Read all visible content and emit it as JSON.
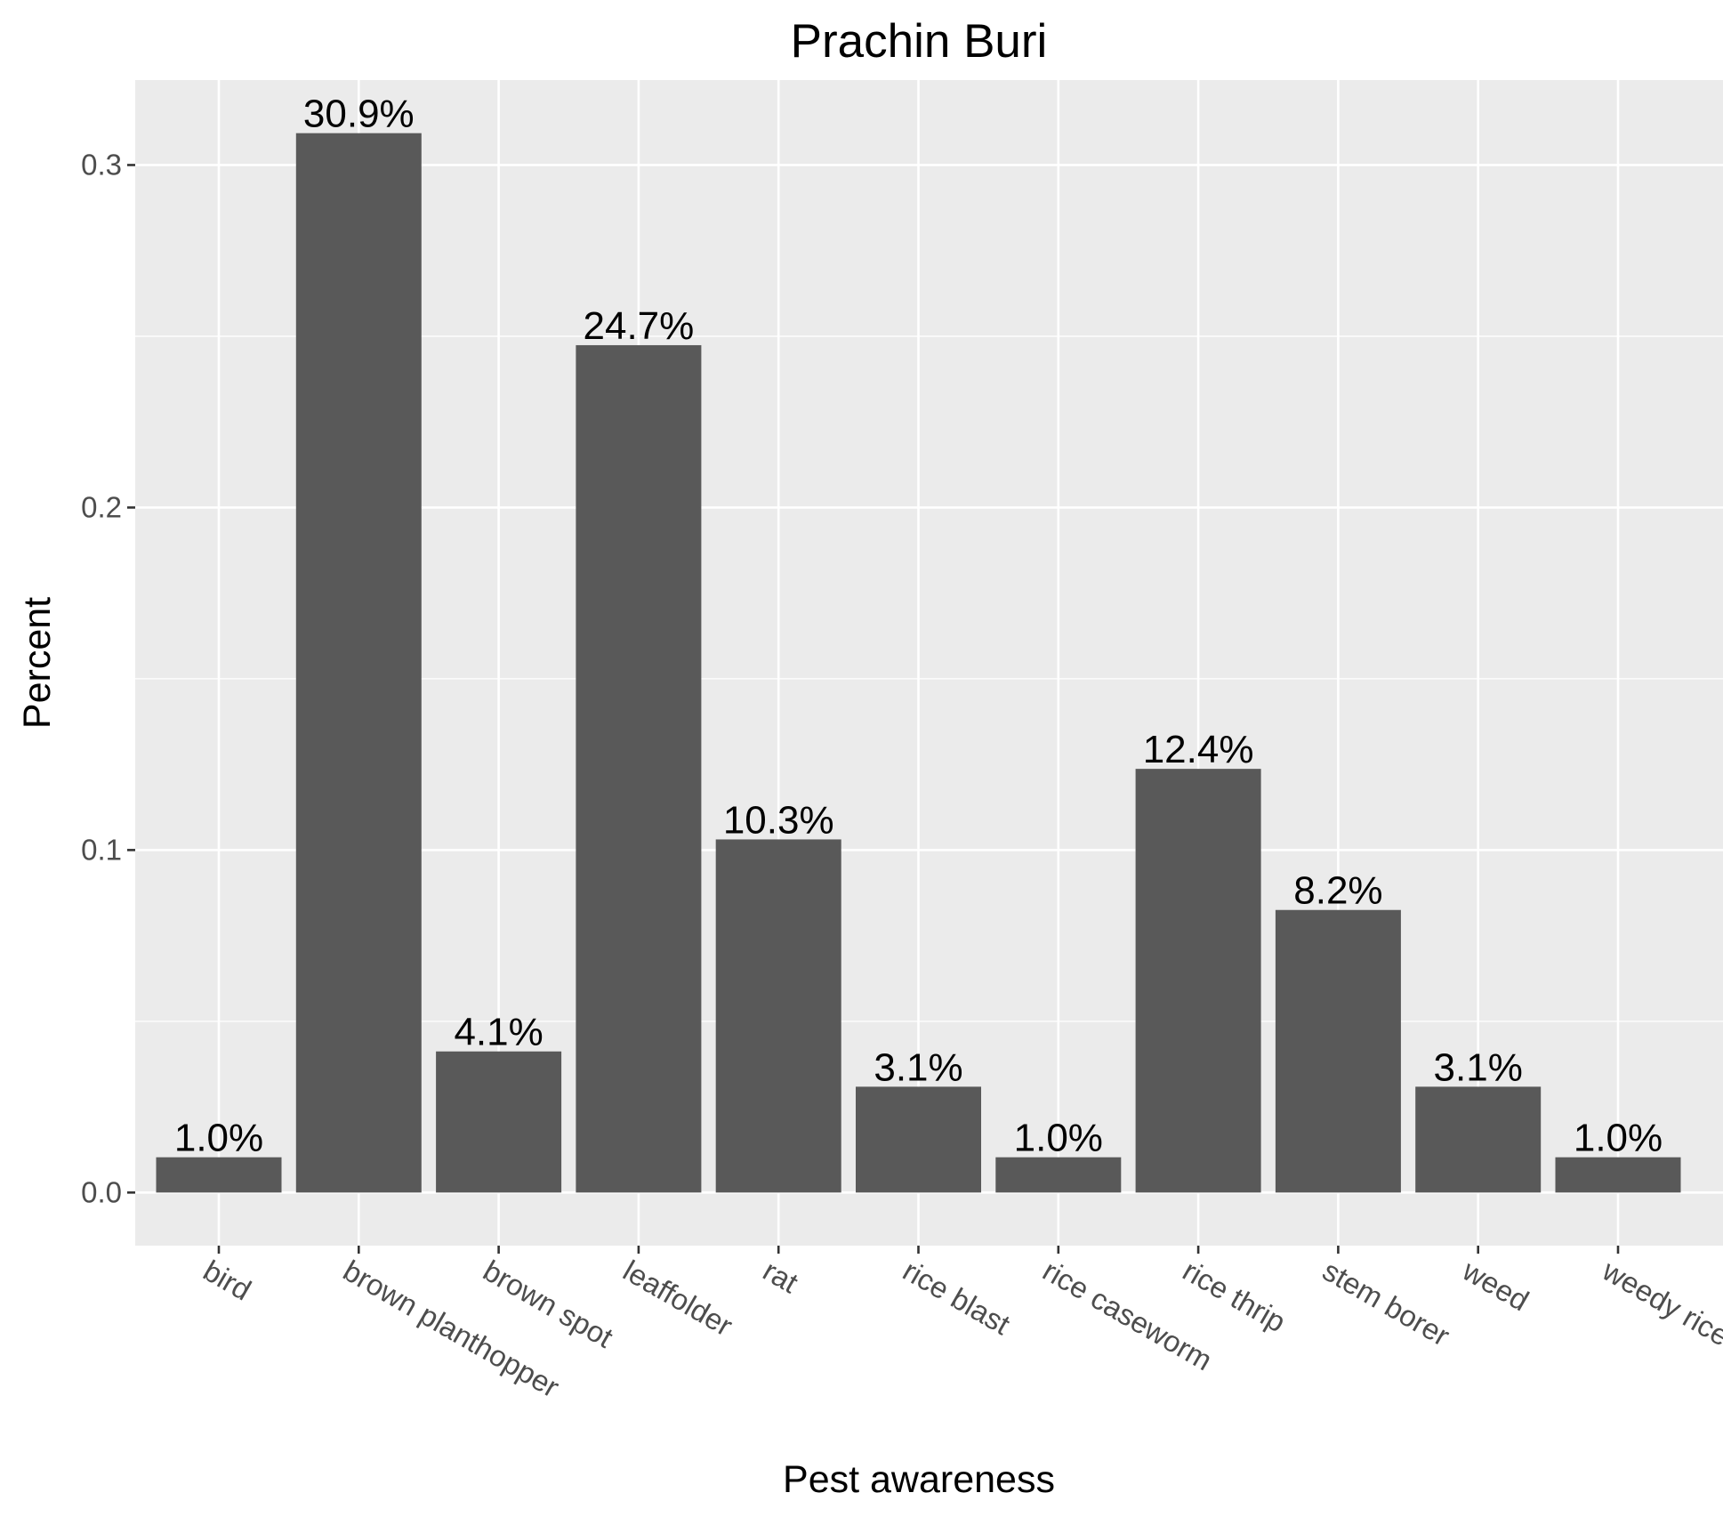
{
  "chart_data": {
    "type": "bar",
    "title": "Prachin Buri",
    "xlabel": "Pest awareness",
    "ylabel": "Percent",
    "categories": [
      "bird",
      "brown planthopper",
      "brown spot",
      "leaffolder",
      "rat",
      "rice blast",
      "rice caseworm",
      "rice thrip",
      "stem borer",
      "weed",
      "weedy rice"
    ],
    "values": [
      0.0103,
      0.3093,
      0.0412,
      0.2474,
      0.1031,
      0.0309,
      0.0103,
      0.1237,
      0.0825,
      0.0309,
      0.0103
    ],
    "data_labels": [
      "1.0%",
      "30.9%",
      "4.1%",
      "24.7%",
      "10.3%",
      "3.1%",
      "1.0%",
      "12.4%",
      "8.2%",
      "3.1%",
      "1.0%"
    ],
    "ylim": [
      -0.0155,
      0.3248
    ],
    "yticks": [
      0.0,
      0.1,
      0.2,
      0.3
    ],
    "ytick_labels": [
      "0.0",
      "0.1",
      "0.2",
      "0.3"
    ],
    "grid": true,
    "legend": "none",
    "colors": {
      "bar": "#595959",
      "panel": "#EBEBEB",
      "grid": "#FFFFFF",
      "tick_label": "#4D4D4D"
    }
  }
}
